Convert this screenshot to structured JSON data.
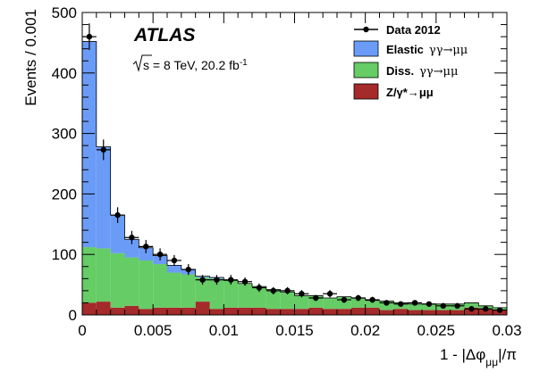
{
  "chart_data": {
    "type": "bar",
    "stacked": true,
    "experiment_label": "ATLAS",
    "energy_label": {
      "sqrt_s": "s",
      "rest": "= 8 TeV, 20.2 fb",
      "superscript": "-1"
    },
    "xlabel": {
      "prefix": "1 - |Δφ",
      "subscript": "μμ",
      "suffix": "|/π"
    },
    "ylabel": "Events / 0.001",
    "xlim": [
      0,
      0.03
    ],
    "ylim": [
      0,
      500
    ],
    "x_ticks": [
      0,
      0.005,
      0.01,
      0.015,
      0.02,
      0.025,
      0.03
    ],
    "x_tick_labels": [
      "0",
      "0.005",
      "0.01",
      "0.015",
      "0.02",
      "0.025",
      "0.03"
    ],
    "y_ticks": [
      0,
      100,
      200,
      300,
      400,
      500
    ],
    "y_tick_labels": [
      "0",
      "100",
      "200",
      "300",
      "400",
      "500"
    ],
    "bin_width": 0.001,
    "bin_lower_edges": [
      0,
      0.001,
      0.002,
      0.003,
      0.004,
      0.005,
      0.006,
      0.007,
      0.008,
      0.009,
      0.01,
      0.011,
      0.012,
      0.013,
      0.014,
      0.015,
      0.016,
      0.017,
      0.018,
      0.019,
      0.02,
      0.021,
      0.022,
      0.023,
      0.024,
      0.025,
      0.026,
      0.027,
      0.028,
      0.029
    ],
    "legend": {
      "placement": "top-right",
      "entries": [
        {
          "key": "data",
          "label": "Data 2012",
          "process": ""
        },
        {
          "key": "elastic",
          "label": "Elastic",
          "process": "γγ→μμ"
        },
        {
          "key": "diss",
          "label": "Diss.",
          "process": "γγ→μμ"
        },
        {
          "key": "dy",
          "label": "Z/γ*→μμ",
          "process": ""
        }
      ]
    },
    "colors": {
      "elastic": "#6a9cf7",
      "diss": "#66cc66",
      "dy": "#a52a2a",
      "data": "#000000"
    },
    "series": [
      {
        "key": "dy",
        "values": [
          20,
          22,
          12,
          15,
          10,
          12,
          12,
          12,
          22,
          10,
          12,
          12,
          12,
          10,
          10,
          10,
          12,
          10,
          10,
          12,
          12,
          8,
          10,
          8,
          8,
          8,
          8,
          12,
          10,
          8
        ]
      },
      {
        "key": "diss",
        "values": [
          92,
          88,
          90,
          80,
          80,
          72,
          58,
          55,
          40,
          50,
          45,
          40,
          35,
          32,
          28,
          22,
          20,
          18,
          20,
          16,
          12,
          15,
          10,
          10,
          10,
          10,
          10,
          8,
          5,
          4
        ]
      },
      {
        "key": "elastic",
        "values": [
          340,
          168,
          63,
          30,
          21,
          14,
          12,
          8,
          2,
          2,
          0,
          0,
          0,
          0,
          0,
          0,
          0,
          0,
          0,
          0,
          0,
          0,
          0,
          0,
          0,
          0,
          0,
          0,
          0,
          0
        ]
      }
    ],
    "data_points": {
      "x": [
        0.0005,
        0.0015,
        0.0025,
        0.0035,
        0.0045,
        0.0055,
        0.0065,
        0.0075,
        0.0085,
        0.0095,
        0.0105,
        0.0115,
        0.0125,
        0.0135,
        0.0145,
        0.0155,
        0.0165,
        0.0175,
        0.0185,
        0.0195,
        0.0205,
        0.0215,
        0.0225,
        0.0235,
        0.0245,
        0.0255,
        0.0265,
        0.0275,
        0.0285,
        0.0295
      ],
      "y": [
        460,
        273,
        165,
        128,
        113,
        100,
        90,
        75,
        58,
        58,
        58,
        55,
        45,
        40,
        40,
        35,
        28,
        35,
        25,
        28,
        25,
        20,
        18,
        20,
        18,
        15,
        15,
        10,
        10,
        8
      ],
      "yerr": [
        22,
        17,
        13,
        11,
        11,
        10,
        9,
        9,
        8,
        8,
        8,
        7,
        7,
        6,
        6,
        6,
        5,
        6,
        5,
        5,
        5,
        4,
        4,
        4,
        4,
        4,
        4,
        3,
        3,
        3
      ]
    }
  }
}
